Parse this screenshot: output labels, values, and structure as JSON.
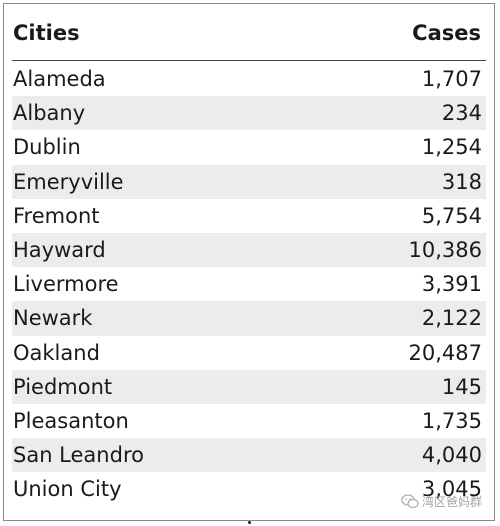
{
  "table": {
    "headers": {
      "city": "Cities",
      "cases": "Cases"
    },
    "rows": [
      {
        "city": "Alameda",
        "cases": "1,707"
      },
      {
        "city": "Albany",
        "cases": "234"
      },
      {
        "city": "Dublin",
        "cases": "1,254"
      },
      {
        "city": "Emeryville",
        "cases": "318"
      },
      {
        "city": "Fremont",
        "cases": "5,754"
      },
      {
        "city": "Hayward",
        "cases": "10,386"
      },
      {
        "city": "Livermore",
        "cases": "3,391"
      },
      {
        "city": "Newark",
        "cases": "2,122"
      },
      {
        "city": "Oakland",
        "cases": "20,487"
      },
      {
        "city": "Piedmont",
        "cases": "145"
      },
      {
        "city": "Pleasanton",
        "cases": "1,735"
      },
      {
        "city": "San Leandro",
        "cases": "4,040"
      },
      {
        "city": "Union City",
        "cases": "3,045"
      }
    ]
  },
  "watermark": {
    "icon": "wechat-icon",
    "text": "湾区爸妈群"
  },
  "colors": {
    "stripe": "#ececec",
    "border": "#8a8a8a",
    "text": "#1a1a1a"
  }
}
